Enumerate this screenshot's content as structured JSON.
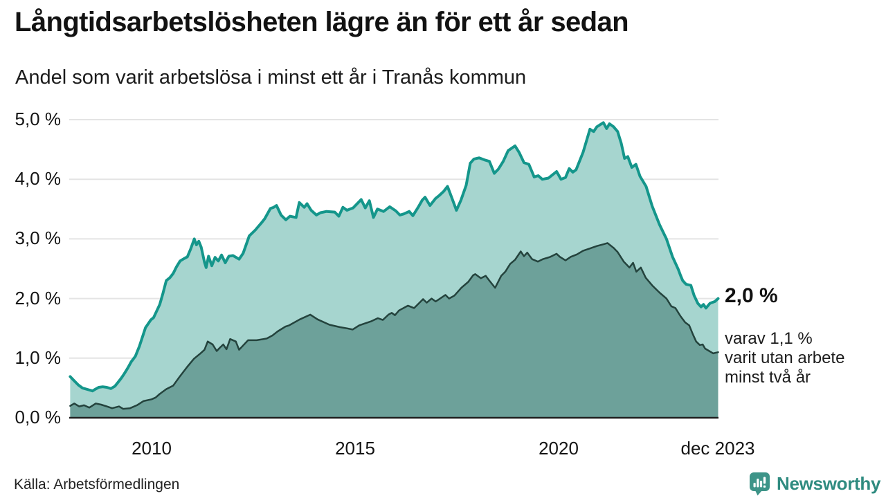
{
  "header": {
    "title": "Långtidsarbetslösheten lägre än för ett år sedan",
    "subtitle": "Andel som varit arbetslösa i minst ett år i Tranås kommun"
  },
  "annotation": {
    "value_label": "2,0 %",
    "detail_lines": [
      "varav 1,1 %",
      "varit utan arbete",
      "minst två år"
    ]
  },
  "footer": {
    "source": "Källa: Arbetsförmedlingen",
    "brand": "Newsworthy"
  },
  "colors": {
    "teal_line": "#14968b",
    "teal_fill": "#a6d5cf",
    "dark_line": "#24433d",
    "dark_fill": "#6da19a",
    "grid": "#e4e4e4",
    "axis": "#1f1f1f",
    "text": "#141414",
    "brand_teal": "#2f8b80"
  },
  "chart_data": {
    "type": "area",
    "title": "Långtidsarbetslösheten lägre än för ett år sedan",
    "subtitle": "Andel som varit arbetslösa i minst ett år i Tranås kommun",
    "unit": "%",
    "grid": true,
    "x_axis": {
      "range": [
        2008.0,
        2023.92
      ],
      "ticks": [
        {
          "label": "2010",
          "year": 2010
        },
        {
          "label": "2015",
          "year": 2015
        },
        {
          "label": "2020",
          "year": 2020
        },
        {
          "label": "dec 2023",
          "year": 2023.92
        }
      ]
    },
    "y_axis": {
      "range": [
        0,
        5
      ],
      "ticks": [
        {
          "label": "5,0 %",
          "value": 5.0
        },
        {
          "label": "4,0 %",
          "value": 4.0
        },
        {
          "label": "3,0 %",
          "value": 3.0
        },
        {
          "label": "2,0 %",
          "value": 2.0
        },
        {
          "label": "1,0 %",
          "value": 1.0
        },
        {
          "label": "0,0 %",
          "value": 0.0
        }
      ]
    },
    "series": [
      {
        "name": "Arbetslösa minst ett år",
        "end_label": "2,0 %",
        "line_color": "#14968b",
        "fill_color": "#a6d5cf",
        "stroke_width": 4,
        "points": [
          [
            2008.0,
            0.69
          ],
          [
            2008.1,
            0.62
          ],
          [
            2008.2,
            0.55
          ],
          [
            2008.3,
            0.5
          ],
          [
            2008.45,
            0.47
          ],
          [
            2008.55,
            0.45
          ],
          [
            2008.62,
            0.48
          ],
          [
            2008.7,
            0.51
          ],
          [
            2008.8,
            0.52
          ],
          [
            2008.9,
            0.51
          ],
          [
            2009.0,
            0.49
          ],
          [
            2009.1,
            0.53
          ],
          [
            2009.17,
            0.59
          ],
          [
            2009.25,
            0.66
          ],
          [
            2009.33,
            0.74
          ],
          [
            2009.42,
            0.84
          ],
          [
            2009.5,
            0.94
          ],
          [
            2009.6,
            1.03
          ],
          [
            2009.7,
            1.2
          ],
          [
            2009.85,
            1.51
          ],
          [
            2009.98,
            1.64
          ],
          [
            2010.05,
            1.68
          ],
          [
            2010.2,
            1.9
          ],
          [
            2010.28,
            2.09
          ],
          [
            2010.36,
            2.3
          ],
          [
            2010.45,
            2.35
          ],
          [
            2010.53,
            2.42
          ],
          [
            2010.61,
            2.53
          ],
          [
            2010.7,
            2.63
          ],
          [
            2010.8,
            2.67
          ],
          [
            2010.88,
            2.7
          ],
          [
            2010.96,
            2.83
          ],
          [
            2011.05,
            3.0
          ],
          [
            2011.1,
            2.9
          ],
          [
            2011.16,
            2.96
          ],
          [
            2011.22,
            2.86
          ],
          [
            2011.3,
            2.61
          ],
          [
            2011.34,
            2.52
          ],
          [
            2011.4,
            2.71
          ],
          [
            2011.48,
            2.55
          ],
          [
            2011.56,
            2.69
          ],
          [
            2011.64,
            2.63
          ],
          [
            2011.72,
            2.73
          ],
          [
            2011.81,
            2.6
          ],
          [
            2011.9,
            2.71
          ],
          [
            2012.0,
            2.72
          ],
          [
            2012.15,
            2.66
          ],
          [
            2012.25,
            2.76
          ],
          [
            2012.4,
            3.05
          ],
          [
            2012.55,
            3.15
          ],
          [
            2012.7,
            3.27
          ],
          [
            2012.78,
            3.34
          ],
          [
            2012.92,
            3.51
          ],
          [
            2013.0,
            3.53
          ],
          [
            2013.07,
            3.56
          ],
          [
            2013.18,
            3.4
          ],
          [
            2013.3,
            3.32
          ],
          [
            2013.4,
            3.38
          ],
          [
            2013.55,
            3.36
          ],
          [
            2013.63,
            3.61
          ],
          [
            2013.75,
            3.53
          ],
          [
            2013.82,
            3.59
          ],
          [
            2013.92,
            3.48
          ],
          [
            2014.05,
            3.4
          ],
          [
            2014.15,
            3.44
          ],
          [
            2014.3,
            3.46
          ],
          [
            2014.5,
            3.45
          ],
          [
            2014.6,
            3.38
          ],
          [
            2014.7,
            3.53
          ],
          [
            2014.8,
            3.48
          ],
          [
            2014.95,
            3.52
          ],
          [
            2015.15,
            3.66
          ],
          [
            2015.25,
            3.52
          ],
          [
            2015.35,
            3.64
          ],
          [
            2015.45,
            3.36
          ],
          [
            2015.55,
            3.5
          ],
          [
            2015.7,
            3.46
          ],
          [
            2015.85,
            3.54
          ],
          [
            2016.0,
            3.47
          ],
          [
            2016.1,
            3.4
          ],
          [
            2016.2,
            3.42
          ],
          [
            2016.33,
            3.46
          ],
          [
            2016.42,
            3.39
          ],
          [
            2016.55,
            3.53
          ],
          [
            2016.65,
            3.65
          ],
          [
            2016.72,
            3.7
          ],
          [
            2016.84,
            3.56
          ],
          [
            2016.98,
            3.68
          ],
          [
            2017.07,
            3.73
          ],
          [
            2017.18,
            3.8
          ],
          [
            2017.27,
            3.88
          ],
          [
            2017.37,
            3.7
          ],
          [
            2017.49,
            3.48
          ],
          [
            2017.6,
            3.65
          ],
          [
            2017.73,
            3.9
          ],
          [
            2017.83,
            4.27
          ],
          [
            2017.92,
            4.34
          ],
          [
            2018.05,
            4.36
          ],
          [
            2018.2,
            4.32
          ],
          [
            2018.3,
            4.3
          ],
          [
            2018.42,
            4.1
          ],
          [
            2018.52,
            4.17
          ],
          [
            2018.64,
            4.3
          ],
          [
            2018.76,
            4.48
          ],
          [
            2018.93,
            4.56
          ],
          [
            2019.03,
            4.45
          ],
          [
            2019.15,
            4.28
          ],
          [
            2019.27,
            4.25
          ],
          [
            2019.4,
            4.04
          ],
          [
            2019.5,
            4.06
          ],
          [
            2019.6,
            4.0
          ],
          [
            2019.75,
            4.02
          ],
          [
            2019.95,
            4.13
          ],
          [
            2020.06,
            4.0
          ],
          [
            2020.17,
            4.03
          ],
          [
            2020.26,
            4.18
          ],
          [
            2020.35,
            4.12
          ],
          [
            2020.43,
            4.16
          ],
          [
            2020.6,
            4.45
          ],
          [
            2020.77,
            4.84
          ],
          [
            2020.86,
            4.8
          ],
          [
            2020.94,
            4.88
          ],
          [
            2021.1,
            4.95
          ],
          [
            2021.18,
            4.85
          ],
          [
            2021.25,
            4.93
          ],
          [
            2021.35,
            4.88
          ],
          [
            2021.45,
            4.8
          ],
          [
            2021.54,
            4.6
          ],
          [
            2021.62,
            4.35
          ],
          [
            2021.7,
            4.38
          ],
          [
            2021.8,
            4.2
          ],
          [
            2021.9,
            4.25
          ],
          [
            2022.0,
            4.05
          ],
          [
            2022.15,
            3.88
          ],
          [
            2022.3,
            3.55
          ],
          [
            2022.48,
            3.24
          ],
          [
            2022.65,
            3.0
          ],
          [
            2022.8,
            2.7
          ],
          [
            2022.94,
            2.49
          ],
          [
            2023.0,
            2.38
          ],
          [
            2023.05,
            2.3
          ],
          [
            2023.13,
            2.24
          ],
          [
            2023.25,
            2.22
          ],
          [
            2023.33,
            2.05
          ],
          [
            2023.42,
            1.92
          ],
          [
            2023.5,
            1.86
          ],
          [
            2023.56,
            1.9
          ],
          [
            2023.62,
            1.84
          ],
          [
            2023.72,
            1.92
          ],
          [
            2023.84,
            1.95
          ],
          [
            2023.92,
            2.0
          ]
        ]
      },
      {
        "name": "Arbetslösa minst två år",
        "end_label": "1,1 %",
        "line_color": "#24433d",
        "fill_color": "#6da19a",
        "stroke_width": 2.5,
        "points": [
          [
            2008.0,
            0.2
          ],
          [
            2008.1,
            0.24
          ],
          [
            2008.22,
            0.19
          ],
          [
            2008.34,
            0.21
          ],
          [
            2008.47,
            0.17
          ],
          [
            2008.63,
            0.24
          ],
          [
            2008.76,
            0.22
          ],
          [
            2008.9,
            0.19
          ],
          [
            2009.03,
            0.16
          ],
          [
            2009.2,
            0.19
          ],
          [
            2009.3,
            0.15
          ],
          [
            2009.47,
            0.16
          ],
          [
            2009.64,
            0.21
          ],
          [
            2009.8,
            0.28
          ],
          [
            2010.0,
            0.31
          ],
          [
            2010.1,
            0.34
          ],
          [
            2010.2,
            0.4
          ],
          [
            2010.36,
            0.48
          ],
          [
            2010.53,
            0.54
          ],
          [
            2010.7,
            0.7
          ],
          [
            2010.87,
            0.85
          ],
          [
            2011.04,
            0.99
          ],
          [
            2011.2,
            1.08
          ],
          [
            2011.3,
            1.14
          ],
          [
            2011.38,
            1.28
          ],
          [
            2011.5,
            1.23
          ],
          [
            2011.6,
            1.12
          ],
          [
            2011.67,
            1.17
          ],
          [
            2011.76,
            1.23
          ],
          [
            2011.84,
            1.15
          ],
          [
            2011.93,
            1.32
          ],
          [
            2012.07,
            1.28
          ],
          [
            2012.15,
            1.14
          ],
          [
            2012.37,
            1.3
          ],
          [
            2012.58,
            1.3
          ],
          [
            2012.83,
            1.33
          ],
          [
            2012.97,
            1.38
          ],
          [
            2013.1,
            1.45
          ],
          [
            2013.29,
            1.53
          ],
          [
            2013.38,
            1.55
          ],
          [
            2013.64,
            1.65
          ],
          [
            2013.9,
            1.73
          ],
          [
            2014.08,
            1.65
          ],
          [
            2014.37,
            1.56
          ],
          [
            2014.63,
            1.52
          ],
          [
            2014.8,
            1.5
          ],
          [
            2014.94,
            1.48
          ],
          [
            2015.1,
            1.55
          ],
          [
            2015.23,
            1.58
          ],
          [
            2015.4,
            1.62
          ],
          [
            2015.56,
            1.67
          ],
          [
            2015.68,
            1.64
          ],
          [
            2015.82,
            1.73
          ],
          [
            2015.9,
            1.76
          ],
          [
            2015.98,
            1.72
          ],
          [
            2016.08,
            1.8
          ],
          [
            2016.3,
            1.88
          ],
          [
            2016.45,
            1.84
          ],
          [
            2016.67,
            1.99
          ],
          [
            2016.76,
            1.93
          ],
          [
            2016.88,
            2.0
          ],
          [
            2016.98,
            1.95
          ],
          [
            2017.22,
            2.06
          ],
          [
            2017.31,
            2.0
          ],
          [
            2017.44,
            2.05
          ],
          [
            2017.61,
            2.18
          ],
          [
            2017.78,
            2.28
          ],
          [
            2017.9,
            2.39
          ],
          [
            2017.95,
            2.41
          ],
          [
            2018.09,
            2.34
          ],
          [
            2018.21,
            2.38
          ],
          [
            2018.3,
            2.3
          ],
          [
            2018.44,
            2.18
          ],
          [
            2018.59,
            2.38
          ],
          [
            2018.69,
            2.45
          ],
          [
            2018.81,
            2.58
          ],
          [
            2018.93,
            2.65
          ],
          [
            2019.07,
            2.79
          ],
          [
            2019.15,
            2.71
          ],
          [
            2019.23,
            2.77
          ],
          [
            2019.35,
            2.66
          ],
          [
            2019.49,
            2.62
          ],
          [
            2019.61,
            2.66
          ],
          [
            2019.71,
            2.68
          ],
          [
            2019.8,
            2.7
          ],
          [
            2019.95,
            2.75
          ],
          [
            2020.03,
            2.7
          ],
          [
            2020.17,
            2.64
          ],
          [
            2020.3,
            2.7
          ],
          [
            2020.45,
            2.74
          ],
          [
            2020.6,
            2.8
          ],
          [
            2020.77,
            2.84
          ],
          [
            2020.94,
            2.88
          ],
          [
            2021.1,
            2.91
          ],
          [
            2021.2,
            2.93
          ],
          [
            2021.35,
            2.85
          ],
          [
            2021.45,
            2.78
          ],
          [
            2021.6,
            2.62
          ],
          [
            2021.74,
            2.52
          ],
          [
            2021.83,
            2.6
          ],
          [
            2021.91,
            2.45
          ],
          [
            2022.02,
            2.52
          ],
          [
            2022.14,
            2.35
          ],
          [
            2022.3,
            2.22
          ],
          [
            2022.48,
            2.1
          ],
          [
            2022.65,
            2.0
          ],
          [
            2022.77,
            1.87
          ],
          [
            2022.87,
            1.84
          ],
          [
            2023.0,
            1.7
          ],
          [
            2023.11,
            1.6
          ],
          [
            2023.21,
            1.55
          ],
          [
            2023.3,
            1.4
          ],
          [
            2023.38,
            1.28
          ],
          [
            2023.47,
            1.22
          ],
          [
            2023.54,
            1.23
          ],
          [
            2023.6,
            1.16
          ],
          [
            2023.7,
            1.12
          ],
          [
            2023.8,
            1.08
          ],
          [
            2023.92,
            1.1
          ]
        ]
      }
    ]
  }
}
